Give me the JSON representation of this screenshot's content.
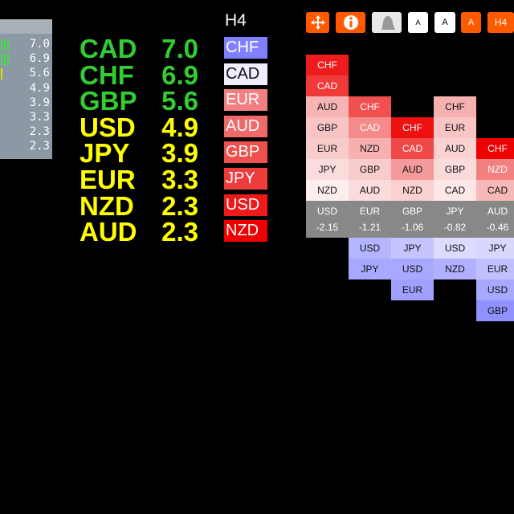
{
  "left_panel": {
    "values": [
      "7.0",
      "6.9",
      "5.6",
      "4.9",
      "3.9",
      "3.3",
      "2.3",
      "2.3"
    ]
  },
  "strength_list": [
    {
      "currency": "CAD",
      "value": "7.0",
      "color": "#33cc33"
    },
    {
      "currency": "CHF",
      "value": "6.9",
      "color": "#33cc33"
    },
    {
      "currency": "GBP",
      "value": "5.6",
      "color": "#33cc33"
    },
    {
      "currency": "USD",
      "value": "4.9",
      "color": "#ffff00"
    },
    {
      "currency": "JPY",
      "value": "3.9",
      "color": "#ffff00"
    },
    {
      "currency": "EUR",
      "value": "3.3",
      "color": "#ffff00"
    },
    {
      "currency": "NZD",
      "value": "2.3",
      "color": "#ffff00"
    },
    {
      "currency": "AUD",
      "value": "2.3",
      "color": "#ffff00"
    }
  ],
  "timeframe": "H4",
  "rank_boxes": [
    {
      "label": "CHF",
      "color": "#8080ff"
    },
    {
      "label": "CAD",
      "color": "#eeeeff"
    },
    {
      "label": "EUR",
      "color": "#f28080"
    },
    {
      "label": "AUD",
      "color": "#f06a6a"
    },
    {
      "label": "GBP",
      "color": "#ee5050"
    },
    {
      "label": "JPY",
      "color": "#ee3c3c"
    },
    {
      "label": "USD",
      "color": "#ee1a1a"
    },
    {
      "label": "NZD",
      "color": "#ee0000"
    }
  ],
  "toolbar": {
    "buttons": [
      "A",
      "A",
      "A",
      "H4"
    ]
  },
  "matrix": {
    "columns": [
      {
        "currency": "USD",
        "score": "-2.15",
        "above": [
          {
            "label": "CHF",
            "color": "#ee1c1c"
          },
          {
            "label": "CAD",
            "color": "#f03a3a"
          },
          {
            "label": "AUD",
            "color": "#f7b4b4"
          },
          {
            "label": "GBP",
            "color": "#f8c4c4"
          },
          {
            "label": "EUR",
            "color": "#f9cccc"
          },
          {
            "label": "JPY",
            "color": "#fbdcdc"
          },
          {
            "label": "NZD",
            "color": "#fdeeee"
          }
        ],
        "below": []
      },
      {
        "currency": "EUR",
        "score": "-1.21",
        "above": [
          {
            "label": "CHF",
            "color": "#f05050"
          },
          {
            "label": "CAD",
            "color": "#f48a8a"
          },
          {
            "label": "NZD",
            "color": "#f7b0b0"
          },
          {
            "label": "GBP",
            "color": "#f9cccc"
          },
          {
            "label": "AUD",
            "color": "#fbdcdc"
          }
        ],
        "below": [
          {
            "label": "USD",
            "color": "#b4b4ff"
          },
          {
            "label": "JPY",
            "color": "#a8a8ff"
          }
        ]
      },
      {
        "currency": "GBP",
        "score": "-1.06",
        "above": [
          {
            "label": "CHF",
            "color": "#ee1111"
          },
          {
            "label": "CAD",
            "color": "#f04848"
          },
          {
            "label": "AUD",
            "color": "#f59a9a"
          },
          {
            "label": "NZD",
            "color": "#fad0d0"
          }
        ],
        "below": [
          {
            "label": "JPY",
            "color": "#c4c4ff"
          },
          {
            "label": "USD",
            "color": "#a8a8ff"
          },
          {
            "label": "EUR",
            "color": "#a0a0ff"
          }
        ]
      },
      {
        "currency": "JPY",
        "score": "-0.82",
        "above": [
          {
            "label": "CHF",
            "color": "#f7b0b0"
          },
          {
            "label": "EUR",
            "color": "#f9c4c4"
          },
          {
            "label": "AUD",
            "color": "#fad2d2"
          },
          {
            "label": "GBP",
            "color": "#fbdada"
          },
          {
            "label": "CAD",
            "color": "#fde8e8"
          }
        ],
        "below": [
          {
            "label": "USD",
            "color": "#dcdcff"
          },
          {
            "label": "NZD",
            "color": "#b0b0ff"
          }
        ]
      },
      {
        "currency": "AUD",
        "score": "-0.46",
        "above": [
          {
            "label": "CHF",
            "color": "#ee0000"
          },
          {
            "label": "NZD",
            "color": "#f28080"
          },
          {
            "label": "CAD",
            "color": "#f7b8b8"
          }
        ],
        "below": [
          {
            "label": "JPY",
            "color": "#d8d8ff"
          },
          {
            "label": "EUR",
            "color": "#c0c0ff"
          },
          {
            "label": "USD",
            "color": "#a8a8ff"
          },
          {
            "label": "GBP",
            "color": "#9090ff"
          }
        ]
      }
    ]
  }
}
